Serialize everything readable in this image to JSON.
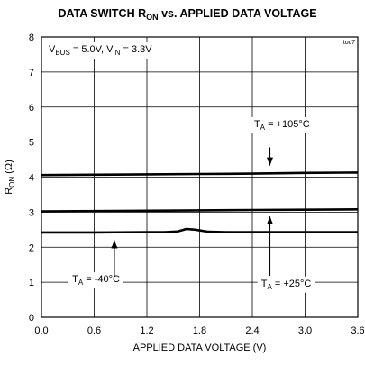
{
  "chart_data": {
    "type": "line",
    "title": {
      "main": "DATA SWITCH R",
      "sub": "ON",
      "rest": " vs. APPLIED DATA VOLTAGE"
    },
    "figure_id": "toc7",
    "xlabel": "APPLIED DATA VOLTAGE (V)",
    "ylabel": {
      "main": "R",
      "sub": "ON",
      "rest": " (Ω)"
    },
    "xlim": [
      0,
      3.6
    ],
    "ylim": [
      0,
      8
    ],
    "xticks": [
      "0.0",
      "0.6",
      "1.2",
      "1.8",
      "2.4",
      "3.0",
      "3.6"
    ],
    "yticks": [
      "0",
      "1",
      "2",
      "3",
      "4",
      "5",
      "6",
      "7",
      "8"
    ],
    "grid": true,
    "conditions": {
      "v1": "V",
      "v1_sub": "BUS",
      "v1_val": " = 5.0V, ",
      "v2": "V",
      "v2_sub": "IN",
      "v2_val": " = 3.3V"
    },
    "series": [
      {
        "name": "T_A = +105°C",
        "x": [
          0,
          0.6,
          1.2,
          1.8,
          2.4,
          3.0,
          3.6
        ],
        "y": [
          4.06,
          4.07,
          4.08,
          4.09,
          4.1,
          4.12,
          4.13
        ]
      },
      {
        "name": "T_A = +25°C",
        "x": [
          0,
          0.6,
          1.2,
          1.8,
          2.4,
          3.0,
          3.6
        ],
        "y": [
          3.02,
          3.03,
          3.04,
          3.05,
          3.06,
          3.07,
          3.08
        ]
      },
      {
        "name": "T_A = -40°C",
        "x": [
          0,
          0.6,
          1.2,
          1.4,
          1.55,
          1.65,
          1.75,
          1.9,
          2.1,
          2.4,
          3.0,
          3.6
        ],
        "y": [
          2.42,
          2.42,
          2.43,
          2.43,
          2.45,
          2.52,
          2.5,
          2.44,
          2.43,
          2.43,
          2.43,
          2.43
        ]
      }
    ],
    "annotations": [
      {
        "pre": "T",
        "sub": "A",
        "post": " = +105°C"
      },
      {
        "pre": "T",
        "sub": "A",
        "post": " = -40°C"
      },
      {
        "pre": "T",
        "sub": "A",
        "post": " = +25°C"
      }
    ]
  }
}
